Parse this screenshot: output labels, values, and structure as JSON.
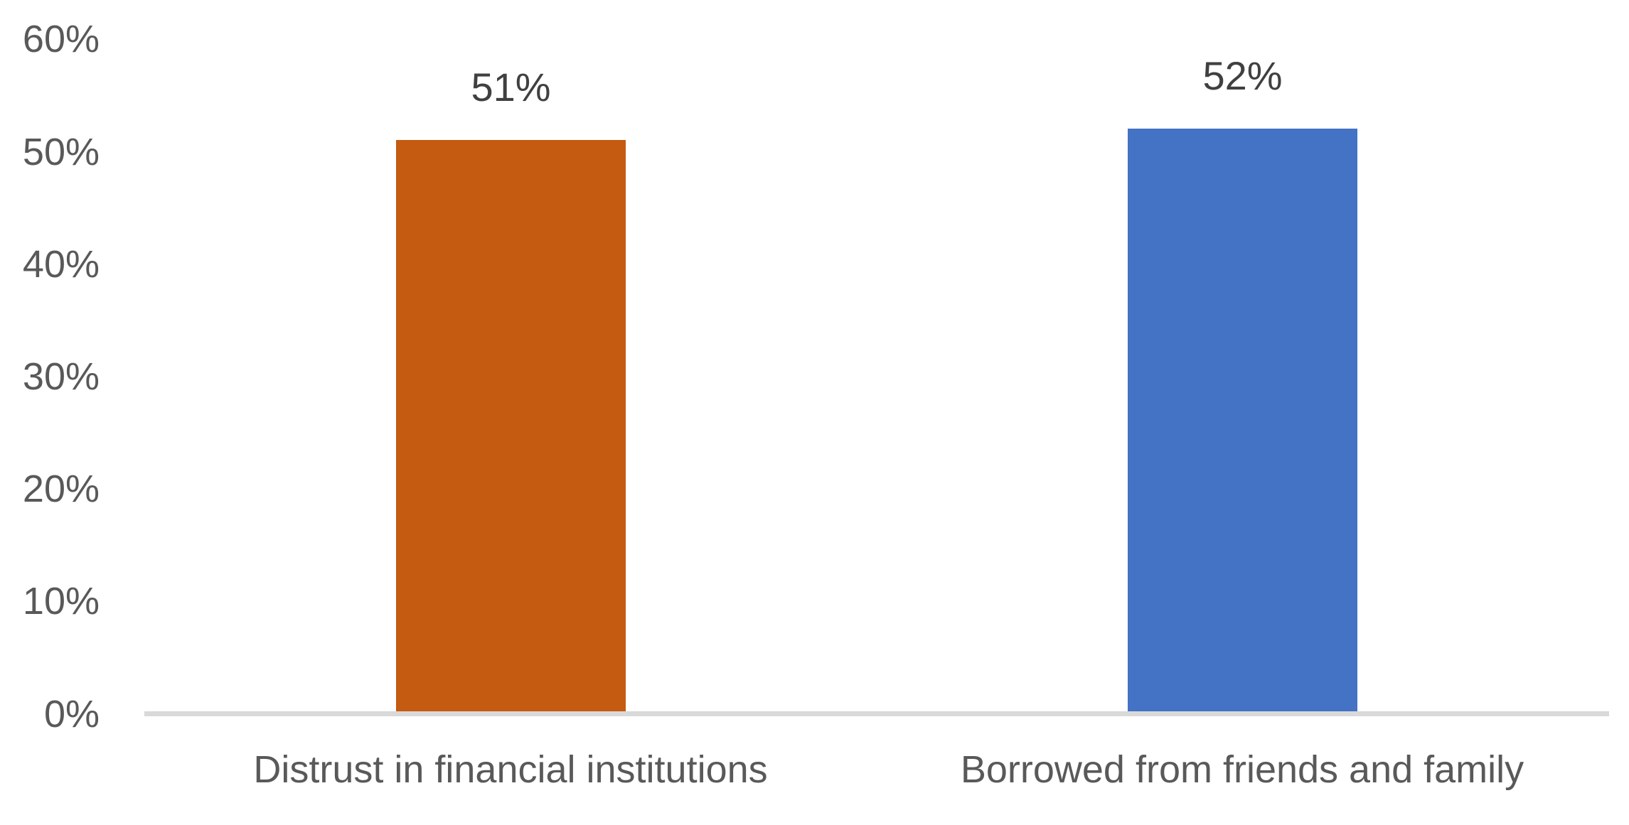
{
  "chart_data": {
    "type": "bar",
    "title": "",
    "xlabel": "",
    "ylabel": "",
    "categories": [
      "Distrust in financial institutions",
      "Borrowed from friends and family"
    ],
    "values": [
      51,
      52
    ],
    "data_labels": [
      "51%",
      "52%"
    ],
    "bar_colors": [
      "#C55A11",
      "#4472C4"
    ],
    "ylim": [
      0,
      60
    ],
    "ytick_step": 10,
    "yticks": [
      "0%",
      "10%",
      "20%",
      "30%",
      "40%",
      "50%",
      "60%"
    ],
    "grid": false,
    "legend": false,
    "background_color": "#FFFFFF",
    "axis_line_color": "#D9D9D9",
    "tick_label_color": "#595959",
    "data_label_color": "#404040"
  }
}
